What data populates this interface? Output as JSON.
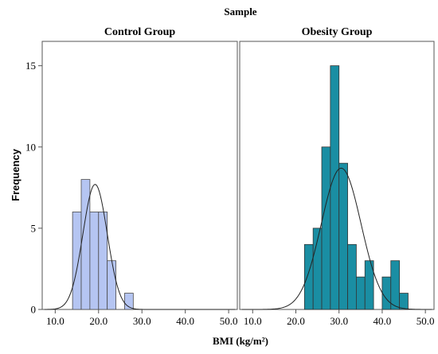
{
  "chart_data": {
    "type": "bar",
    "title": "Sample",
    "xlabel": "BMI (kg/m²)",
    "ylabel": "Frequency",
    "xlim": [
      7,
      52
    ],
    "ylim": [
      0,
      16.5
    ],
    "xticks": [
      10.0,
      20.0,
      30.0,
      40.0,
      50.0
    ],
    "xtick_labels": [
      "10.0",
      "20.0",
      "30.0",
      "40.0",
      "50.0"
    ],
    "yticks": [
      0,
      5,
      10,
      15
    ],
    "ytick_labels": [
      "0",
      "5",
      "10",
      "15"
    ],
    "grid": false,
    "panels": [
      {
        "name": "Control Group",
        "color": "#b5c5f2",
        "edge_color": "#4a4a4a",
        "bins": [
          {
            "x0": 14,
            "x1": 16,
            "count": 6
          },
          {
            "x0": 16,
            "x1": 18,
            "count": 8
          },
          {
            "x0": 18,
            "x1": 20,
            "count": 6
          },
          {
            "x0": 20,
            "x1": 22,
            "count": 6
          },
          {
            "x0": 22,
            "x1": 24,
            "count": 3
          },
          {
            "x0": 24,
            "x1": 26,
            "count": 0
          },
          {
            "x0": 26,
            "x1": 28,
            "count": 1
          }
        ],
        "normal_curve": {
          "mean": 19.2,
          "sd": 2.8,
          "peak": 7.7
        }
      },
      {
        "name": "Obesity Group",
        "color": "#1a8ea3",
        "edge_color": "#333333",
        "bins": [
          {
            "x0": 22,
            "x1": 24,
            "count": 4
          },
          {
            "x0": 24,
            "x1": 26,
            "count": 5
          },
          {
            "x0": 26,
            "x1": 28,
            "count": 10
          },
          {
            "x0": 28,
            "x1": 30,
            "count": 15
          },
          {
            "x0": 30,
            "x1": 32,
            "count": 9
          },
          {
            "x0": 32,
            "x1": 34,
            "count": 4
          },
          {
            "x0": 34,
            "x1": 36,
            "count": 2
          },
          {
            "x0": 36,
            "x1": 38,
            "count": 3
          },
          {
            "x0": 38,
            "x1": 40,
            "count": 0
          },
          {
            "x0": 40,
            "x1": 42,
            "count": 2
          },
          {
            "x0": 42,
            "x1": 44,
            "count": 3
          },
          {
            "x0": 44,
            "x1": 46,
            "count": 1
          }
        ],
        "normal_curve": {
          "mean": 30.5,
          "sd": 4.6,
          "peak": 8.7
        }
      }
    ]
  }
}
